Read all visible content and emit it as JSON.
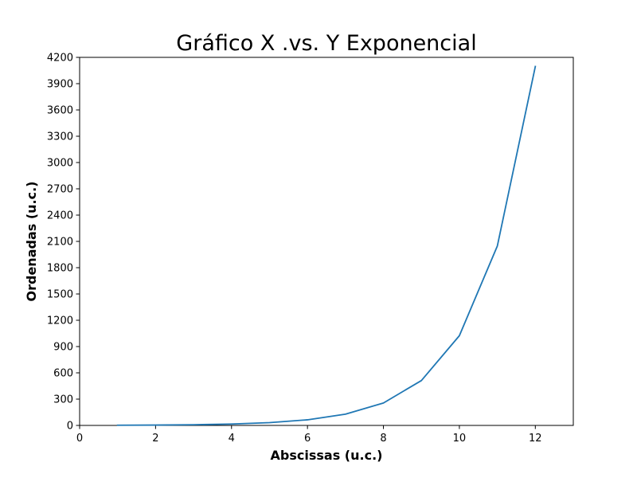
{
  "chart_data": {
    "type": "line",
    "title": "Gráfico X .vs. Y Exponencial",
    "xlabel": "Abscissas (u.c.)",
    "ylabel": "Ordenadas (u.c.)",
    "xlim": [
      0,
      13
    ],
    "ylim": [
      0,
      4200
    ],
    "xticks": [
      0,
      2,
      4,
      6,
      8,
      10,
      12
    ],
    "yticks": [
      0,
      300,
      600,
      900,
      1200,
      1500,
      1800,
      2100,
      2400,
      2700,
      3000,
      3300,
      3600,
      3900,
      4200
    ],
    "grid": false,
    "series": [
      {
        "color": "#1f77b4",
        "x": [
          1,
          2,
          3,
          4,
          5,
          6,
          7,
          8,
          9,
          10,
          11,
          12
        ],
        "y": [
          2,
          4,
          8,
          16,
          32,
          64,
          128,
          256,
          512,
          1024,
          2048,
          4096
        ]
      }
    ]
  }
}
